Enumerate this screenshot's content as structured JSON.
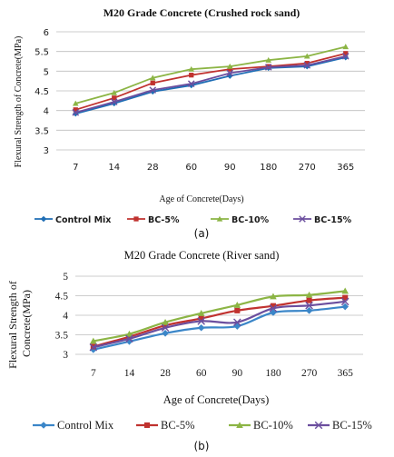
{
  "chart_data": [
    {
      "type": "line",
      "title": "M20 Grade Concrete (Crushed rock sand)",
      "xlabel": "Age of Concrete(Days)",
      "ylabel": "Flexural Strength of Concrete(MPa)",
      "caption": "(a)",
      "categories": [
        "7",
        "14",
        "28",
        "60",
        "90",
        "180",
        "270",
        "365"
      ],
      "y_ticks": [
        "3",
        "3.5",
        "4",
        "4.5",
        "5",
        "5.5",
        "6"
      ],
      "ylim": [
        3,
        6
      ],
      "grid": true,
      "legend_position": "bottom",
      "series": [
        {
          "name": "Control Mix",
          "color": "#1f6eb5",
          "marker": "diamond",
          "values": [
            3.92,
            4.18,
            4.48,
            4.64,
            4.88,
            5.08,
            5.12,
            5.35
          ]
        },
        {
          "name": "BC-5%",
          "color": "#c0322f",
          "marker": "square",
          "values": [
            4.02,
            4.32,
            4.7,
            4.9,
            5.05,
            5.12,
            5.2,
            5.45
          ]
        },
        {
          "name": "BC-10%",
          "color": "#8cb545",
          "marker": "triangle",
          "values": [
            4.18,
            4.45,
            4.83,
            5.05,
            5.12,
            5.28,
            5.38,
            5.62
          ]
        },
        {
          "name": "BC-15%",
          "color": "#6b4e9e",
          "marker": "x",
          "values": [
            3.95,
            4.22,
            4.52,
            4.68,
            4.95,
            5.1,
            5.15,
            5.38
          ]
        }
      ]
    },
    {
      "type": "line",
      "title": "M20 Grade Concrete (River sand)",
      "xlabel": "Age of Concrete(Days)",
      "ylabel": "Flexural Strength of Concrete(MPa)",
      "caption": "(b)",
      "categories": [
        "7",
        "14",
        "28",
        "60",
        "90",
        "180",
        "270",
        "365"
      ],
      "y_ticks": [
        "3",
        "3.5",
        "4",
        "4.5",
        "5"
      ],
      "ylim": [
        3,
        5
      ],
      "grid": true,
      "legend_position": "bottom",
      "series": [
        {
          "name": "Control Mix",
          "color": "#3b86c8",
          "marker": "diamond",
          "values": [
            3.12,
            3.33,
            3.54,
            3.68,
            3.72,
            4.07,
            4.12,
            4.22
          ]
        },
        {
          "name": "BC-5%",
          "color": "#c0322f",
          "marker": "square",
          "values": [
            3.2,
            3.45,
            3.74,
            3.92,
            4.12,
            4.24,
            4.38,
            4.45
          ]
        },
        {
          "name": "BC-10%",
          "color": "#8cb545",
          "marker": "triangle",
          "values": [
            3.34,
            3.52,
            3.82,
            4.05,
            4.26,
            4.48,
            4.52,
            4.62
          ]
        },
        {
          "name": "BC-15%",
          "color": "#6b4e9e",
          "marker": "x",
          "values": [
            3.18,
            3.4,
            3.68,
            3.85,
            3.82,
            4.18,
            4.25,
            4.35
          ]
        }
      ]
    }
  ]
}
